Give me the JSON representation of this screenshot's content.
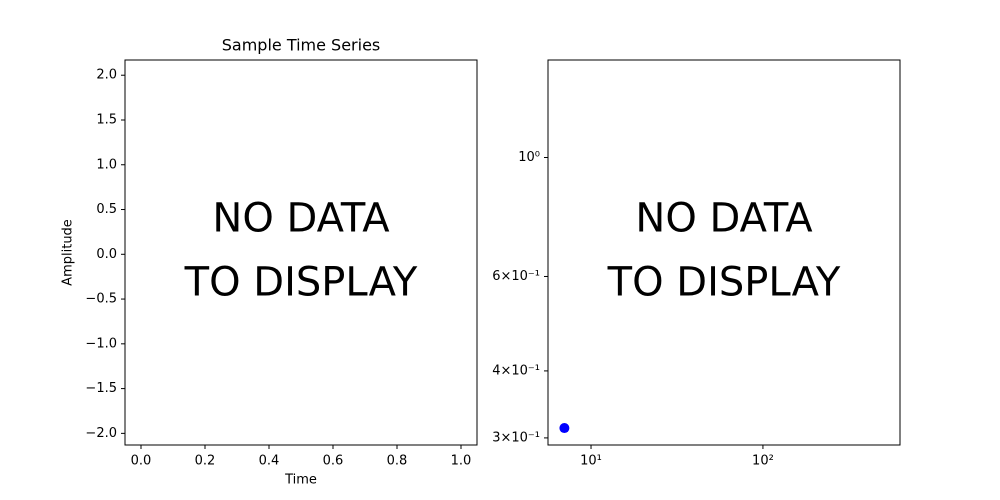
{
  "chart_data": [
    {
      "type": "line",
      "title": "Sample Time Series",
      "xlabel": "Time",
      "ylabel": "Amplitude",
      "annotation": [
        "NO DATA",
        "TO DISPLAY"
      ],
      "xlim": [
        -0.05,
        1.05
      ],
      "xticks": [
        {
          "value": 0,
          "label": "0.0"
        },
        0.2,
        0.4,
        0.6,
        0.8,
        {
          "value": 1,
          "label": "1.0"
        }
      ],
      "ylim": [
        -2.13,
        2.17
      ],
      "yticks": [
        {
          "value": -2,
          "label": "−2.0"
        },
        {
          "value": -1.5,
          "label": "−1.5"
        },
        {
          "value": -1,
          "label": "−1.0"
        },
        {
          "value": -0.5,
          "label": "−0.5"
        },
        {
          "value": 0,
          "label": "0.0"
        },
        0.5,
        {
          "value": 1,
          "label": "1.0"
        },
        1.5,
        {
          "value": 2,
          "label": "2.0"
        }
      ]
    },
    {
      "type": "scatter",
      "log_x": true,
      "log_y": true,
      "annotation": [
        "NO DATA",
        "TO DISPLAY"
      ],
      "x": [
        7
      ],
      "values": [
        0.313
      ],
      "color": "#0000ff",
      "xlim": [
        5.62,
        627
      ],
      "xticks": [
        {
          "value": 10,
          "label": "10¹"
        },
        {
          "value": 100,
          "label": "10²"
        }
      ],
      "ylim": [
        0.291,
        1.52
      ],
      "yticks": [
        {
          "value": 0.3,
          "label": "3×10⁻¹"
        },
        {
          "value": 0.4,
          "label": "4×10⁻¹"
        },
        {
          "value": 0.6,
          "label": "6×10⁻¹"
        },
        {
          "value": 1,
          "label": "10⁰"
        }
      ]
    }
  ]
}
